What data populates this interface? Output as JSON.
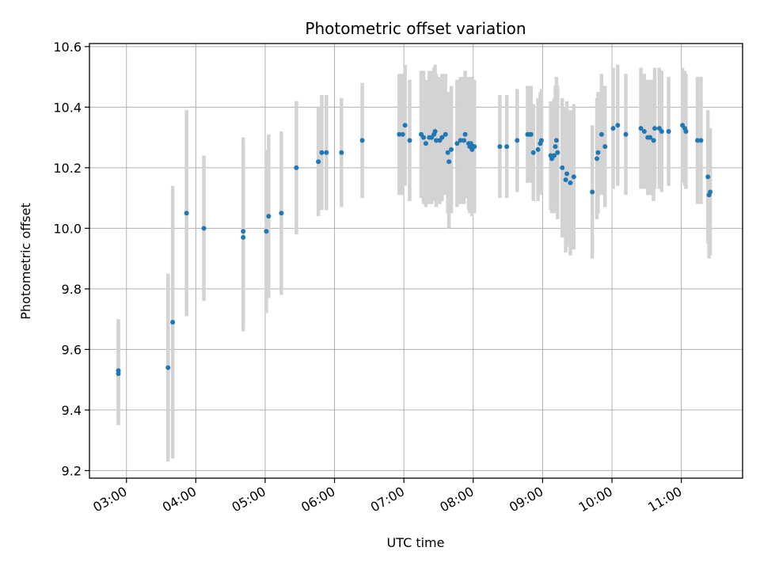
{
  "chart_data": {
    "type": "scatter",
    "title": "Photometric offset variation",
    "xlabel": "UTC time",
    "ylabel": "Photometric offset",
    "xlim": [
      "02:28",
      "11:53"
    ],
    "ylim": [
      9.175,
      10.61
    ],
    "x_ticks": [
      "03:00",
      "04:00",
      "05:00",
      "06:00",
      "07:00",
      "08:00",
      "09:00",
      "10:00",
      "11:00"
    ],
    "y_ticks": [
      "9.2",
      "9.4",
      "9.6",
      "9.8",
      "10.0",
      "10.2",
      "10.4",
      "10.6"
    ],
    "grid": true,
    "colors": {
      "points": "#1f77b4",
      "error_bars": "#d3d3d3",
      "grid": "#b0b0b0"
    },
    "series": [
      {
        "x": [
          "02:53",
          "02:53",
          "03:36",
          "03:40",
          "03:52",
          "04:07",
          "04:41",
          "04:41",
          "05:01",
          "05:03",
          "05:14",
          "05:27",
          "05:46",
          "05:49",
          "05:53",
          "06:06",
          "06:24",
          "06:56",
          "06:59",
          "07:01",
          "07:05",
          "07:15",
          "07:17",
          "07:19",
          "07:22",
          "07:24",
          "07:26",
          "07:27",
          "07:28",
          "07:31",
          "07:33",
          "07:36",
          "07:38",
          "07:39",
          "07:41",
          "07:46",
          "07:49",
          "07:52",
          "07:53",
          "07:56",
          "07:57",
          "07:58",
          "07:59",
          "08:00",
          "08:01",
          "08:23",
          "08:29",
          "08:38",
          "08:47",
          "08:49",
          "08:50",
          "08:52",
          "08:56",
          "08:58",
          "08:59",
          "09:07",
          "09:08",
          "09:10",
          "09:11",
          "09:12",
          "09:13",
          "09:17",
          "09:20",
          "09:21",
          "09:24",
          "09:27",
          "09:43",
          "09:47",
          "09:48",
          "09:51",
          "09:54",
          "10:01",
          "10:05",
          "10:12",
          "10:25",
          "10:28",
          "10:31",
          "10:33",
          "10:36",
          "10:37",
          "10:41",
          "10:43",
          "10:49",
          "11:01",
          "11:03",
          "11:04",
          "11:14",
          "11:17",
          "11:23",
          "11:24",
          "11:25"
        ],
        "y": [
          9.52,
          9.53,
          9.54,
          9.69,
          10.05,
          10.0,
          9.97,
          9.99,
          9.99,
          10.04,
          10.05,
          10.2,
          10.22,
          10.25,
          10.25,
          10.25,
          10.29,
          10.31,
          10.31,
          10.34,
          10.29,
          10.31,
          10.3,
          10.28,
          10.3,
          10.3,
          10.31,
          10.32,
          10.29,
          10.29,
          10.3,
          10.31,
          10.25,
          10.22,
          10.26,
          10.28,
          10.29,
          10.29,
          10.31,
          10.28,
          10.27,
          10.28,
          10.26,
          10.27,
          10.27,
          10.27,
          10.27,
          10.29,
          10.31,
          10.31,
          10.31,
          10.25,
          10.26,
          10.28,
          10.29,
          10.24,
          10.23,
          10.24,
          10.27,
          10.29,
          10.25,
          10.2,
          10.16,
          10.18,
          10.15,
          10.17,
          10.12,
          10.23,
          10.25,
          10.31,
          10.27,
          10.33,
          10.34,
          10.31,
          10.33,
          10.32,
          10.3,
          10.3,
          10.29,
          10.33,
          10.33,
          10.32,
          10.32,
          10.34,
          10.33,
          10.32,
          10.29,
          10.29,
          10.17,
          10.11,
          10.12
        ],
        "error": [
          0.17,
          0.17,
          0.31,
          0.45,
          0.34,
          0.24,
          0.31,
          0.31,
          0.27,
          0.27,
          0.27,
          0.22,
          0.18,
          0.19,
          0.19,
          0.18,
          0.19,
          0.2,
          0.2,
          0.2,
          0.2,
          0.21,
          0.22,
          0.21,
          0.22,
          0.22,
          0.22,
          0.22,
          0.22,
          0.21,
          0.21,
          0.2,
          0.2,
          0.22,
          0.21,
          0.21,
          0.21,
          0.21,
          0.21,
          0.22,
          0.22,
          0.22,
          0.22,
          0.22,
          0.22,
          0.17,
          0.17,
          0.17,
          0.16,
          0.16,
          0.16,
          0.16,
          0.17,
          0.17,
          0.17,
          0.18,
          0.18,
          0.19,
          0.2,
          0.21,
          0.22,
          0.23,
          0.24,
          0.24,
          0.24,
          0.24,
          0.22,
          0.2,
          0.2,
          0.2,
          0.2,
          0.2,
          0.2,
          0.2,
          0.2,
          0.19,
          0.19,
          0.19,
          0.2,
          0.2,
          0.2,
          0.2,
          0.18,
          0.19,
          0.19,
          0.19,
          0.21,
          0.21,
          0.22,
          0.21,
          0.21
        ]
      }
    ]
  }
}
